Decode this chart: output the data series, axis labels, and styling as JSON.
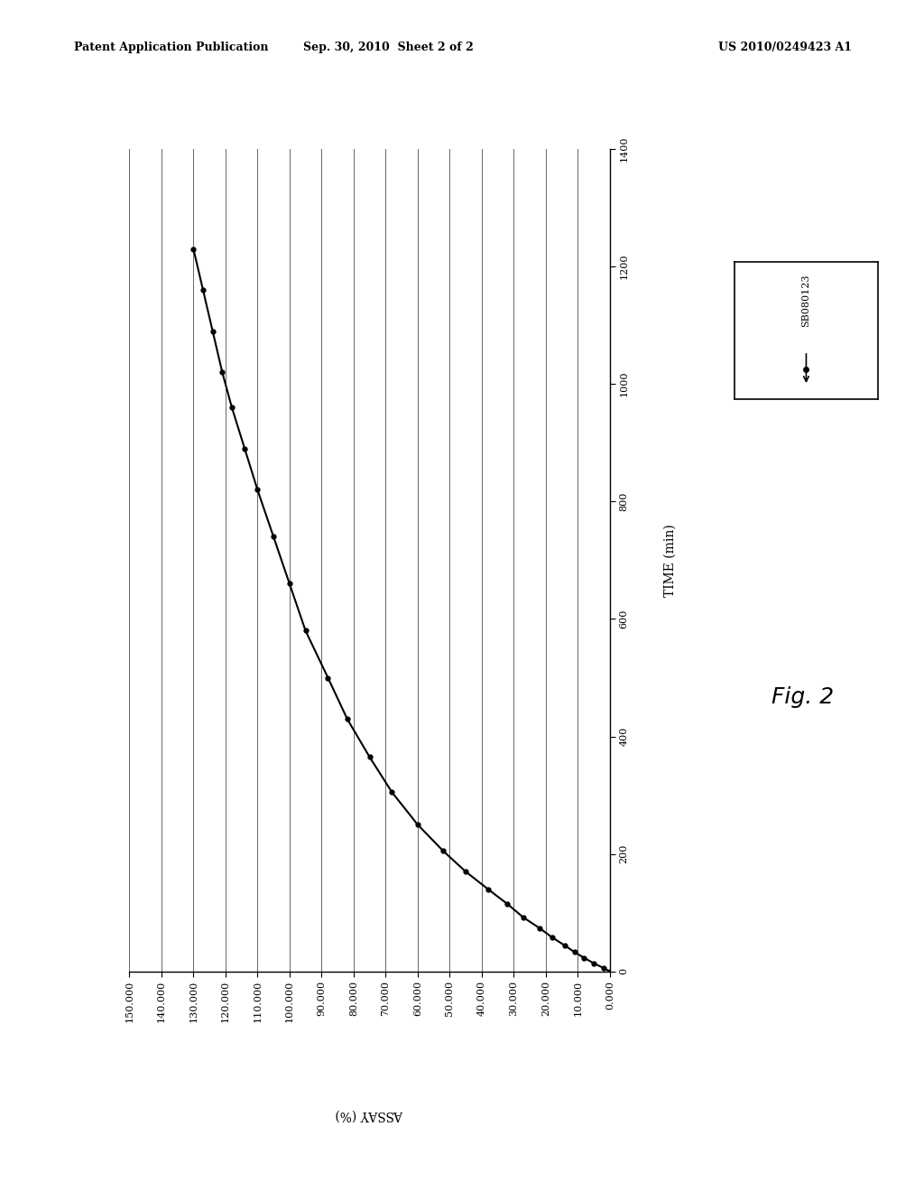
{
  "header_left": "Patent Application Publication",
  "header_center": "Sep. 30, 2010  Sheet 2 of 2",
  "header_right": "US 2010/0249423 A1",
  "xlabel": "ASSAY (%)",
  "ylabel": "TIME (min)",
  "legend_label": "SB080123",
  "fig_label": "Fig. 2",
  "x_values": [
    130,
    127,
    124,
    121,
    118,
    114,
    110,
    105,
    100,
    95,
    88,
    82,
    75,
    68,
    60,
    52,
    45,
    38,
    32,
    27,
    22,
    18,
    14,
    11,
    8,
    5,
    2,
    0
  ],
  "y_values": [
    1230,
    1160,
    1090,
    1020,
    960,
    890,
    820,
    740,
    660,
    580,
    500,
    430,
    365,
    305,
    250,
    205,
    170,
    140,
    115,
    92,
    74,
    58,
    44,
    33,
    23,
    14,
    6,
    0
  ],
  "x_min": 0,
  "x_max": 150,
  "y_min": 0,
  "y_max": 1400,
  "x_ticks": [
    0,
    10,
    20,
    30,
    40,
    50,
    60,
    70,
    80,
    90,
    100,
    110,
    120,
    130,
    140,
    150
  ],
  "x_tick_labels": [
    "0.000",
    "10.000",
    "20.000",
    "30.000",
    "40.000",
    "50.000",
    "60.000",
    "70.000",
    "80.000",
    "90.000",
    "100.000",
    "110.000",
    "120.000",
    "130.000",
    "140.000",
    "150.000"
  ],
  "y_ticks": [
    0,
    200,
    400,
    600,
    800,
    1000,
    1200,
    1400
  ],
  "background_color": "#ffffff",
  "line_color": "#000000",
  "marker": "o",
  "marker_size": 3.5,
  "line_width": 1.5
}
